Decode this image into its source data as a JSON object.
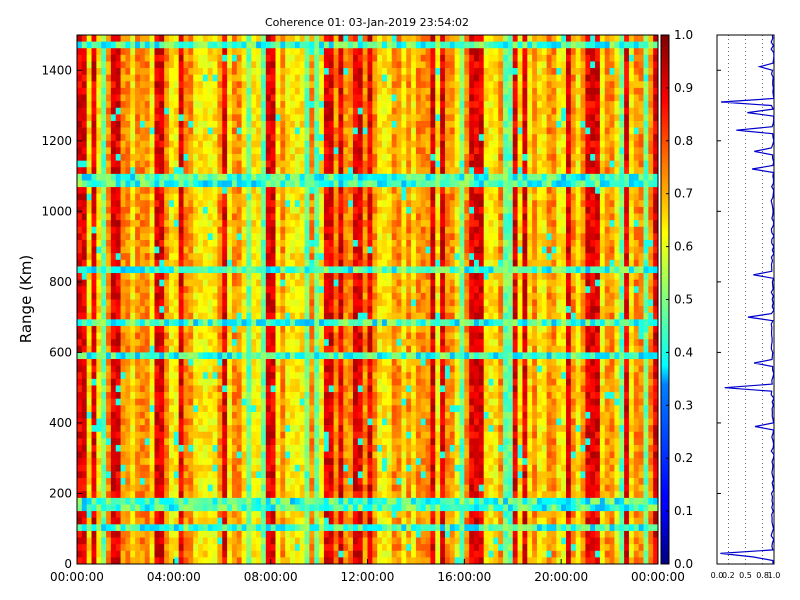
{
  "chart_data": [
    {
      "type": "heatmap",
      "title": "Coherence 01: 03-Jan-2019 23:54:02",
      "xlabel": "",
      "ylabel": "Range (Km)",
      "x_ticks": [
        "00:00:00",
        "04:00:00",
        "08:00:00",
        "12:00:00",
        "16:00:00",
        "20:00:00",
        "00:00:00"
      ],
      "y_ticks": [
        "0",
        "200",
        "400",
        "600",
        "800",
        "1000",
        "1200",
        "1400"
      ],
      "xlim_hours": [
        0,
        24
      ],
      "ylim": [
        0,
        1500
      ],
      "colorbar": {
        "colormap": "jet",
        "range": [
          0.0,
          1.0
        ],
        "ticks": [
          "0.0",
          "0.1",
          "0.2",
          "0.3",
          "0.4",
          "0.5",
          "0.6",
          "0.7",
          "0.8",
          "0.9",
          "1.0"
        ]
      },
      "typical_coherence": [
        0.6,
        0.75
      ],
      "notes_visible": "strong vertical banding; low-coherence horizontal bands near 100, 170, 600, 680, 830, 1090, 1470 km"
    },
    {
      "type": "line",
      "series_color": "#0000cc",
      "x_ticks": [
        "0.0",
        "0.2",
        "0.5",
        "0.8",
        "1.0"
      ],
      "xlim": [
        0,
        1
      ],
      "ylim": [
        0,
        1500
      ],
      "grid": true
    }
  ]
}
